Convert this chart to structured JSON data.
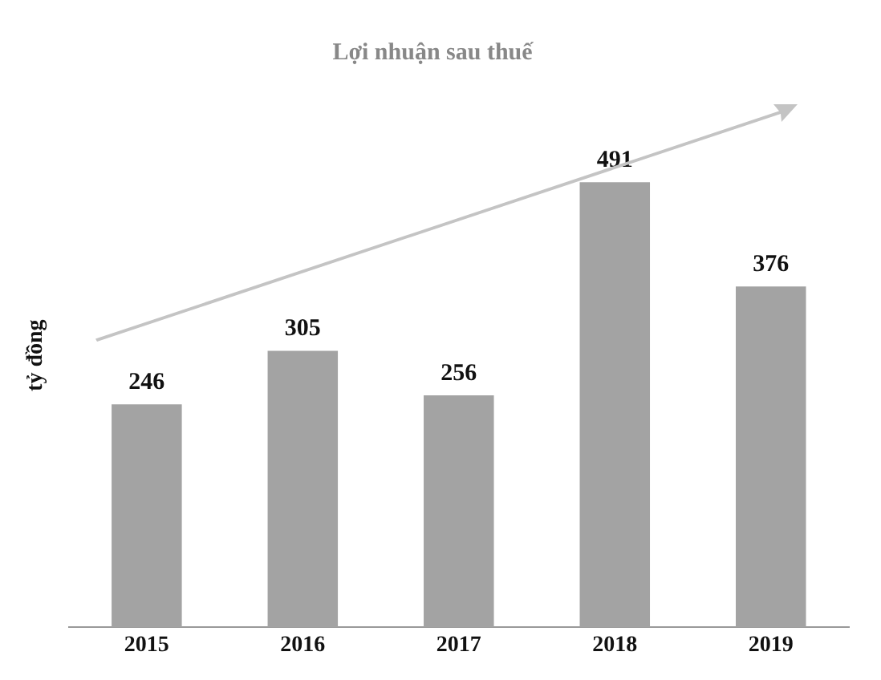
{
  "chart_data": {
    "type": "bar",
    "title": "Lợi nhuận sau thuế",
    "ylabel": "tỷ đồng",
    "categories": [
      "2015",
      "2016",
      "2017",
      "2018",
      "2019"
    ],
    "values": [
      246,
      305,
      256,
      491,
      376
    ],
    "color": "#a3a3a3",
    "data_labels": true,
    "legend": false,
    "grid": false
  }
}
